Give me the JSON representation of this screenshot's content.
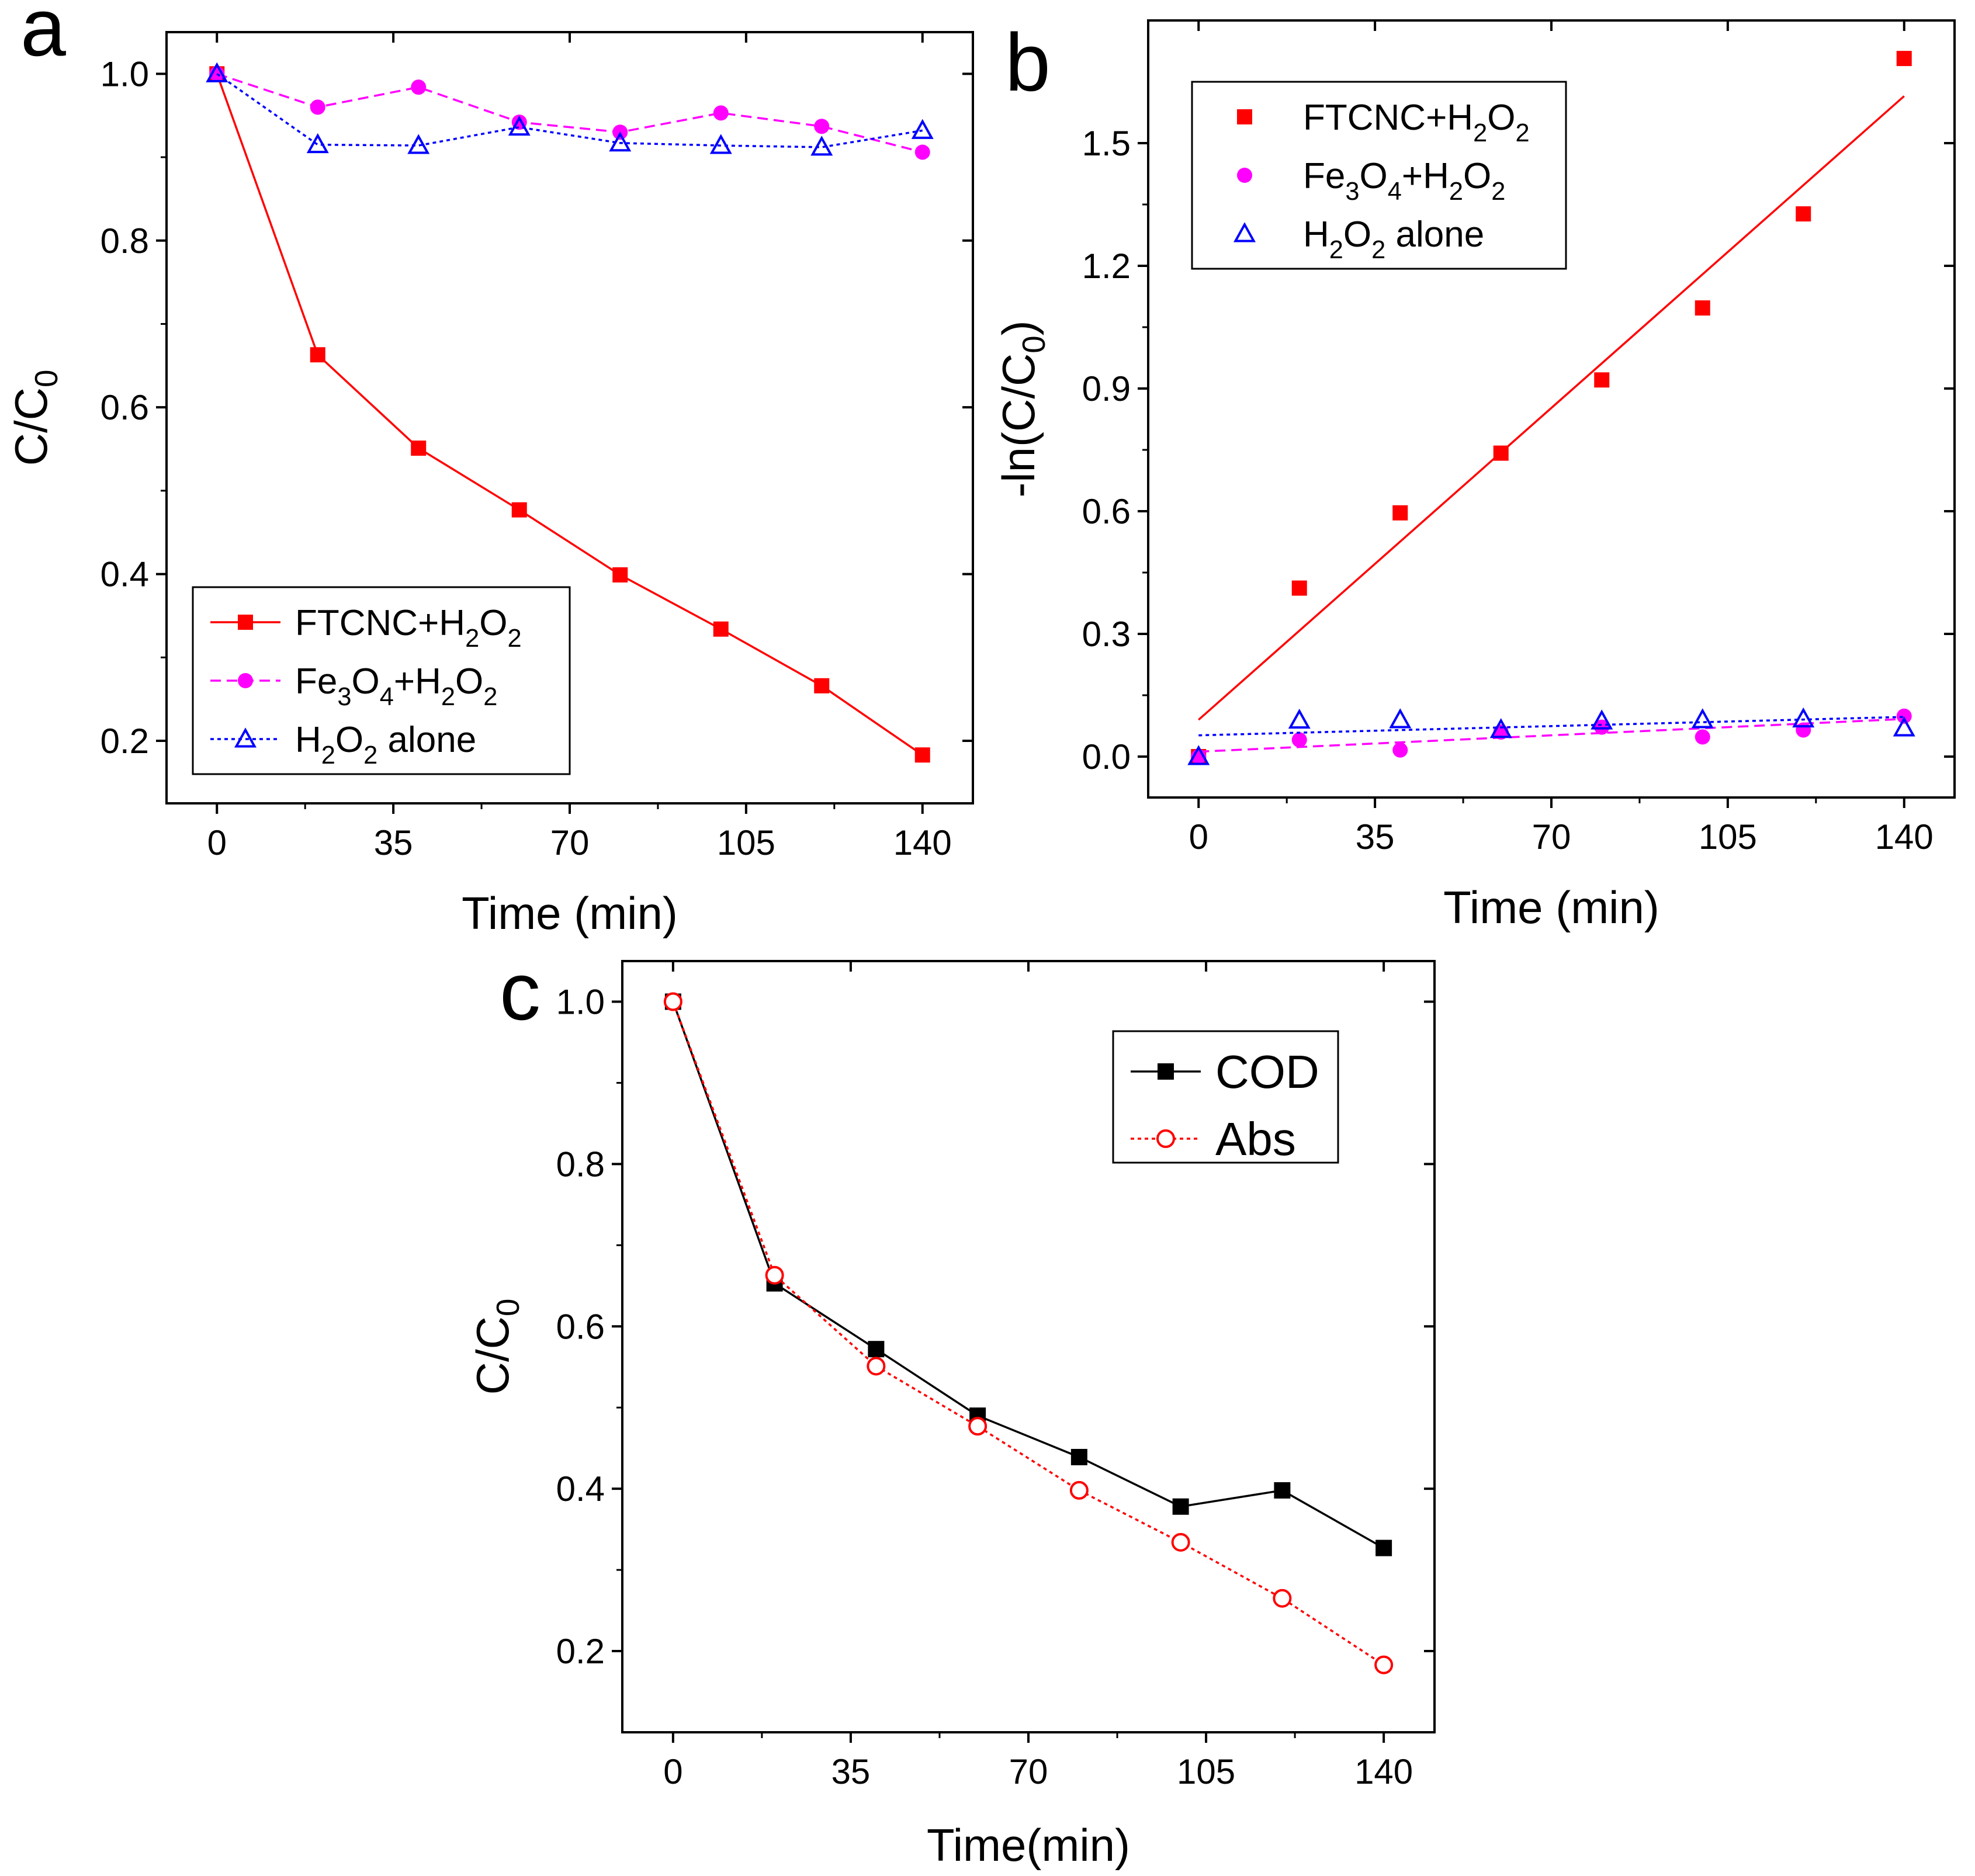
{
  "chart_data": [
    {
      "panel": "a",
      "type": "line",
      "xlabel": "Time (min)",
      "ylabel": "C/C0",
      "ylabel_base": "C/C",
      "ylabel_sub": "0",
      "xlim": [
        -10,
        150
      ],
      "ylim": [
        0.125,
        1.05
      ],
      "xticks": [
        0,
        35,
        70,
        105,
        140
      ],
      "yticks": [
        0.2,
        0.4,
        0.6,
        0.8,
        1.0
      ],
      "ytick_labels": [
        "0.2",
        "0.4",
        "0.6",
        "0.8",
        "1.0"
      ],
      "legend_position": "bottom-left",
      "series": [
        {
          "name": "FTCNC+H2O2",
          "legend_parts": [
            [
              "FTCNC+H",
              ""
            ],
            [
              "2",
              "sub"
            ],
            [
              "O",
              ""
            ],
            [
              "2",
              "sub"
            ]
          ],
          "color": "#ff0000",
          "marker": "square",
          "line": "solid",
          "x": [
            0,
            20,
            40,
            60,
            80,
            100,
            120,
            140
          ],
          "y": [
            1.0,
            0.663,
            0.551,
            0.477,
            0.399,
            0.334,
            0.266,
            0.183
          ]
        },
        {
          "name": "Fe3O4+H2O2",
          "legend_parts": [
            [
              "Fe",
              ""
            ],
            [
              "3",
              "sub"
            ],
            [
              "O",
              ""
            ],
            [
              "4",
              "sub"
            ],
            [
              "+H",
              ""
            ],
            [
              "2",
              "sub"
            ],
            [
              "O",
              ""
            ],
            [
              "2",
              "sub"
            ]
          ],
          "color": "#ff00ff",
          "marker": "circle",
          "line": "dashed",
          "x": [
            0,
            20,
            40,
            60,
            80,
            100,
            120,
            140
          ],
          "y": [
            1.0,
            0.96,
            0.984,
            0.942,
            0.93,
            0.953,
            0.937,
            0.906
          ]
        },
        {
          "name": "H2O2 alone",
          "legend_parts": [
            [
              "H",
              ""
            ],
            [
              "2",
              "sub"
            ],
            [
              "O",
              ""
            ],
            [
              "2",
              "sub"
            ],
            [
              " alone",
              ""
            ]
          ],
          "color": "#0000ff",
          "marker": "triangle-open",
          "line": "dotted",
          "x": [
            0,
            20,
            40,
            60,
            80,
            100,
            120,
            140
          ],
          "y": [
            1.0,
            0.915,
            0.914,
            0.936,
            0.917,
            0.914,
            0.912,
            0.932
          ]
        }
      ]
    },
    {
      "panel": "b",
      "type": "scatter",
      "xlabel": "Time (min)",
      "ylabel": "-ln(C/C0)",
      "ylabel_base": "-ln(C/C",
      "ylabel_sub": "0",
      "ylabel_end": ")",
      "xlim": [
        -10,
        150
      ],
      "ylim": [
        -0.1,
        1.8
      ],
      "xticks": [
        0,
        35,
        70,
        105,
        140
      ],
      "yticks": [
        0.0,
        0.3,
        0.6,
        0.9,
        1.2,
        1.5
      ],
      "ytick_labels": [
        "0.0",
        "0.3",
        "0.6",
        "0.9",
        "1.2",
        "1.5"
      ],
      "legend_position": "top-left",
      "series": [
        {
          "name": "FTCNC+H2O2",
          "legend_parts": [
            [
              "FTCNC+H",
              ""
            ],
            [
              "2",
              "sub"
            ],
            [
              "O",
              ""
            ],
            [
              "2",
              "sub"
            ]
          ],
          "color": "#ff0000",
          "marker": "square",
          "line": "none",
          "x": [
            0,
            20,
            40,
            60,
            80,
            100,
            120,
            140
          ],
          "y": [
            0.0,
            0.412,
            0.596,
            0.742,
            0.921,
            1.097,
            1.327,
            1.707
          ],
          "fit": {
            "x": [
              0,
              140
            ],
            "y": [
              0.09,
              1.615
            ],
            "style": "solid"
          }
        },
        {
          "name": "Fe3O4+H2O2",
          "legend_parts": [
            [
              "Fe",
              ""
            ],
            [
              "3",
              "sub"
            ],
            [
              "O",
              ""
            ],
            [
              "4",
              "sub"
            ],
            [
              "+H",
              ""
            ],
            [
              "2",
              "sub"
            ],
            [
              "O",
              ""
            ],
            [
              "2",
              "sub"
            ]
          ],
          "color": "#ff00ff",
          "marker": "circle",
          "line": "none",
          "x": [
            0,
            20,
            40,
            60,
            80,
            100,
            120,
            140
          ],
          "y": [
            0.0,
            0.041,
            0.016,
            0.06,
            0.072,
            0.048,
            0.065,
            0.099
          ],
          "fit": {
            "x": [
              0,
              140
            ],
            "y": [
              0.012,
              0.092
            ],
            "style": "dashed"
          }
        },
        {
          "name": "H2O2 alone",
          "legend_parts": [
            [
              "H",
              ""
            ],
            [
              "2",
              "sub"
            ],
            [
              "O",
              ""
            ],
            [
              "2",
              "sub"
            ],
            [
              " alone",
              ""
            ]
          ],
          "color": "#0000ff",
          "marker": "triangle-open",
          "line": "none",
          "x": [
            0,
            20,
            40,
            60,
            80,
            100,
            120,
            140
          ],
          "y": [
            0.0,
            0.089,
            0.09,
            0.066,
            0.087,
            0.09,
            0.092,
            0.07
          ],
          "fit": {
            "x": [
              0,
              140
            ],
            "y": [
              0.052,
              0.097
            ],
            "style": "dotted"
          }
        }
      ]
    },
    {
      "panel": "c",
      "type": "line",
      "xlabel": "Time(min)",
      "ylabel": "C/C0",
      "ylabel_base": "C/C",
      "ylabel_sub": "0",
      "xlim": [
        -10,
        150
      ],
      "ylim": [
        0.1,
        1.05
      ],
      "xticks": [
        0,
        35,
        70,
        105,
        140
      ],
      "yticks": [
        0.2,
        0.4,
        0.6,
        0.8,
        1.0
      ],
      "ytick_labels": [
        "0.2",
        "0.4",
        "0.6",
        "0.8",
        "1.0"
      ],
      "legend_position": "top-right",
      "series": [
        {
          "name": "COD",
          "legend_parts": [
            [
              "COD",
              ""
            ]
          ],
          "color": "#000000",
          "marker": "square",
          "line": "solid",
          "x": [
            0,
            20,
            40,
            60,
            80,
            100,
            120,
            140
          ],
          "y": [
            1.0,
            0.653,
            0.572,
            0.49,
            0.439,
            0.378,
            0.398,
            0.327
          ]
        },
        {
          "name": "Abs",
          "legend_parts": [
            [
              "Abs",
              ""
            ]
          ],
          "color": "#ff0000",
          "marker": "circle-open",
          "line": "dotted",
          "x": [
            0,
            20,
            40,
            60,
            80,
            100,
            120,
            140
          ],
          "y": [
            1.0,
            0.663,
            0.551,
            0.477,
            0.398,
            0.334,
            0.265,
            0.183
          ]
        }
      ]
    }
  ]
}
